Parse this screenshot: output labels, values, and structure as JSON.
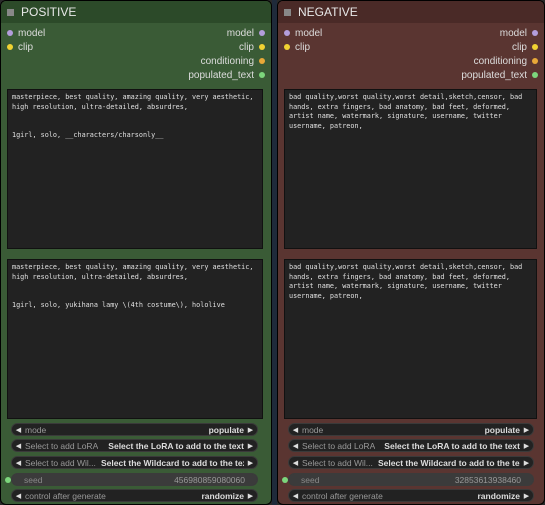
{
  "colors": {
    "model": "#b39ddb",
    "clip": "#f0d232",
    "conditioning": "#e8a838",
    "populated_text": "#7cd67c"
  },
  "positive": {
    "title": "POSITIVE",
    "inputs": [
      "model",
      "clip"
    ],
    "outputs": [
      "model",
      "clip",
      "conditioning",
      "populated_text"
    ],
    "text1": "masterpiece, best quality, amazing quality, very aesthetic, high resolution, ultra-detailed, absurdres,\n\n\n1girl, solo, __characters/charsonly__",
    "text2": "masterpiece, best quality, amazing quality, very aesthetic, high resolution, ultra-detailed, absurdres,\n\n\n1girl, solo, yukihana lamy \\(4th costume\\), hololive",
    "mode_label": "mode",
    "mode_value": "populate",
    "lora_label": "Select to add LoRA",
    "lora_value": "Select the LoRA to add to the text",
    "wildcard_label": "Select to add Wil...",
    "wildcard_value": "Select the Wildcard to add to the text",
    "seed_label": "seed",
    "seed_value": "456980859080060",
    "control_label": "control after generate",
    "control_value": "randomize"
  },
  "negative": {
    "title": "NEGATIVE",
    "inputs": [
      "model",
      "clip"
    ],
    "outputs": [
      "model",
      "clip",
      "conditioning",
      "populated_text"
    ],
    "text1": "bad quality,worst quality,worst detail,sketch,censor, bad hands, extra fingers, bad anatomy, bad feet, deformed, artist name, watermark, signature, username, twitter username, patreon,",
    "text2": "bad quality,worst quality,worst detail,sketch,censor, bad hands, extra fingers, bad anatomy, bad feet, deformed, artist name, watermark, signature, username, twitter username, patreon,",
    "mode_label": "mode",
    "mode_value": "populate",
    "lora_label": "Select to add LoRA",
    "lora_value": "Select the LoRA to add to the text",
    "wildcard_label": "Select to add Wil...",
    "wildcard_value": "Select the Wildcard to add to the text",
    "seed_label": "seed",
    "seed_value": "32853613938460",
    "control_label": "control after generate",
    "control_value": "randomize"
  }
}
